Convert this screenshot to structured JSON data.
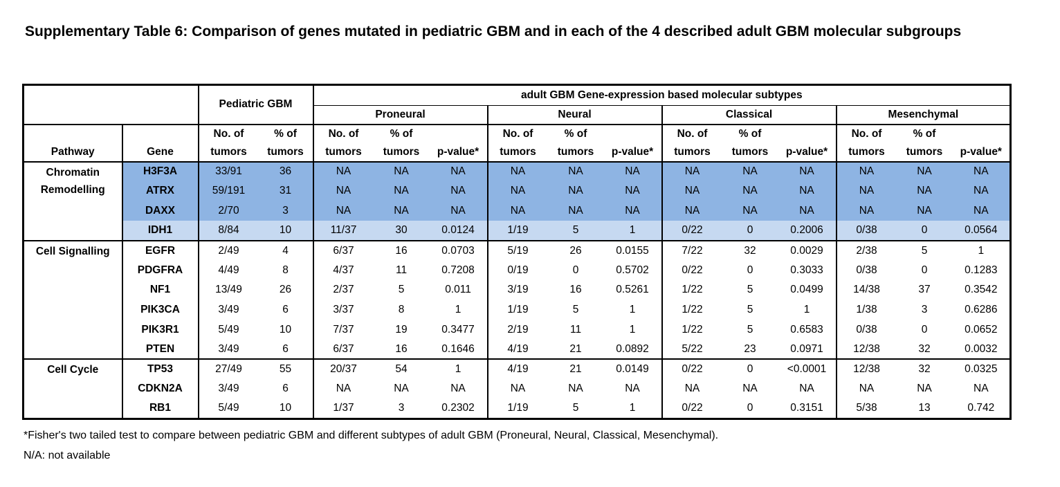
{
  "title": "Supplementary Table 6: Comparison of genes mutated in pediatric GBM and in each of the 4 described adult GBM molecular subgroups",
  "headers": {
    "pediatric": "Pediatric GBM",
    "adult": "adult GBM Gene-expression based molecular subtypes",
    "subtypes": [
      "Proneural",
      "Neural",
      "Classical",
      "Mesenchymal"
    ],
    "pathway": "Pathway",
    "gene": "Gene",
    "no_of": "No. of",
    "pct_of": "% of",
    "tumors": "tumors",
    "pvalue": "p-value*"
  },
  "groups": [
    {
      "pathway": [
        "Chromatin",
        "Remodelling"
      ],
      "rows": [
        {
          "gene": "H3F3A",
          "shade": "dark",
          "cells": [
            "33/91",
            "36",
            "NA",
            "NA",
            "NA",
            "NA",
            "NA",
            "NA",
            "NA",
            "NA",
            "NA",
            "NA",
            "NA",
            "NA"
          ]
        },
        {
          "gene": "ATRX",
          "shade": "dark",
          "cells": [
            "59/191",
            "31",
            "NA",
            "NA",
            "NA",
            "NA",
            "NA",
            "NA",
            "NA",
            "NA",
            "NA",
            "NA",
            "NA",
            "NA"
          ]
        },
        {
          "gene": "DAXX",
          "shade": "dark",
          "cells": [
            "2/70",
            "3",
            "NA",
            "NA",
            "NA",
            "NA",
            "NA",
            "NA",
            "NA",
            "NA",
            "NA",
            "NA",
            "NA",
            "NA"
          ]
        },
        {
          "gene": "IDH1",
          "shade": "light",
          "cells": [
            "8/84",
            "10",
            "11/37",
            "30",
            "0.0124",
            "1/19",
            "5",
            "1",
            "0/22",
            "0",
            "0.2006",
            "0/38",
            "0",
            "0.0564"
          ]
        }
      ]
    },
    {
      "pathway": [
        "Cell Signalling"
      ],
      "rows": [
        {
          "gene": "EGFR",
          "shade": "",
          "cells": [
            "2/49",
            "4",
            "6/37",
            "16",
            "0.0703",
            "5/19",
            "26",
            "0.0155",
            "7/22",
            "32",
            "0.0029",
            "2/38",
            "5",
            "1"
          ]
        },
        {
          "gene": "PDGFRA",
          "shade": "",
          "cells": [
            "4/49",
            "8",
            "4/37",
            "11",
            "0.7208",
            "0/19",
            "0",
            "0.5702",
            "0/22",
            "0",
            "0.3033",
            "0/38",
            "0",
            "0.1283"
          ]
        },
        {
          "gene": "NF1",
          "shade": "",
          "cells": [
            "13/49",
            "26",
            "2/37",
            "5",
            "0.011",
            "3/19",
            "16",
            "0.5261",
            "1/22",
            "5",
            "0.0499",
            "14/38",
            "37",
            "0.3542"
          ]
        },
        {
          "gene": "PIK3CA",
          "shade": "",
          "cells": [
            "3/49",
            "6",
            "3/37",
            "8",
            "1",
            "1/19",
            "5",
            "1",
            "1/22",
            "5",
            "1",
            "1/38",
            "3",
            "0.6286"
          ]
        },
        {
          "gene": "PIK3R1",
          "shade": "",
          "cells": [
            "5/49",
            "10",
            "7/37",
            "19",
            "0.3477",
            "2/19",
            "11",
            "1",
            "1/22",
            "5",
            "0.6583",
            "0/38",
            "0",
            "0.0652"
          ]
        },
        {
          "gene": "PTEN",
          "shade": "",
          "cells": [
            "3/49",
            "6",
            "6/37",
            "16",
            "0.1646",
            "4/19",
            "21",
            "0.0892",
            "5/22",
            "23",
            "0.0971",
            "12/38",
            "32",
            "0.0032"
          ]
        }
      ]
    },
    {
      "pathway": [
        "Cell Cycle"
      ],
      "rows": [
        {
          "gene": "TP53",
          "shade": "",
          "cells": [
            "27/49",
            "55",
            "20/37",
            "54",
            "1",
            "4/19",
            "21",
            "0.0149",
            "0/22",
            "0",
            "<0.0001",
            "12/38",
            "32",
            "0.0325"
          ]
        },
        {
          "gene": "CDKN2A",
          "shade": "",
          "cells": [
            "3/49",
            "6",
            "NA",
            "NA",
            "NA",
            "NA",
            "NA",
            "NA",
            "NA",
            "NA",
            "NA",
            "NA",
            "NA",
            "NA"
          ]
        },
        {
          "gene": "RB1",
          "shade": "",
          "cells": [
            "5/49",
            "10",
            "1/37",
            "3",
            "0.2302",
            "1/19",
            "5",
            "1",
            "0/22",
            "0",
            "0.3151",
            "5/38",
            "13",
            "0.742"
          ]
        }
      ]
    }
  ],
  "footnotes": [
    "*Fisher's two tailed test to compare between pediatric GBM and different subtypes of adult GBM (Proneural, Neural, Classical, Mesenchymal).",
    "N/A: not available"
  ]
}
